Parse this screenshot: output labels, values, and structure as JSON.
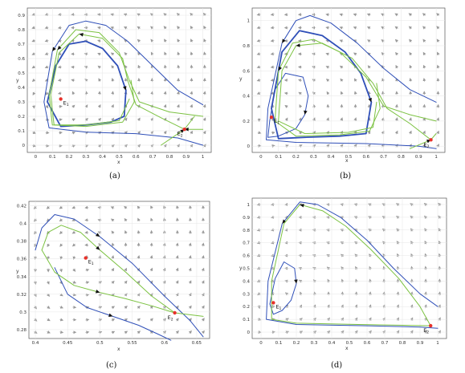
{
  "chart_data": [
    {
      "type": "scatter",
      "panel": "(a)",
      "xlabel": "x",
      "ylabel": "y",
      "xlim": [
        -0.05,
        1.05
      ],
      "ylim": [
        -0.05,
        0.95
      ],
      "xticks": [
        0,
        0.1,
        0.2,
        0.3,
        0.4,
        0.5,
        0.6,
        0.7,
        0.8,
        0.9,
        1
      ],
      "yticks": [
        0,
        0.1,
        0.2,
        0.3,
        0.4,
        0.5,
        0.6,
        0.7,
        0.8,
        0.9
      ],
      "colors": {
        "separatrix": "#2f4fb8",
        "trajectories": "#7cc242",
        "equilibrium": "#e8312a",
        "field": "#a8a8a8"
      },
      "equilibria": [
        {
          "label": "E1",
          "x": 0.15,
          "y": 0.32
        },
        {
          "label": "E2",
          "x": 0.89,
          "y": 0.11
        }
      ],
      "series": [
        {
          "role": "outer-separatrix",
          "x": [
            1.0,
            0.85,
            0.7,
            0.55,
            0.42,
            0.3,
            0.2,
            0.1,
            0.05,
            0.08,
            0.3,
            0.6,
            0.85,
            1.0
          ],
          "y": [
            0.28,
            0.38,
            0.55,
            0.72,
            0.83,
            0.86,
            0.83,
            0.65,
            0.3,
            0.12,
            0.09,
            0.08,
            0.05,
            0.0
          ]
        },
        {
          "role": "limit-cycle",
          "x": [
            0.07,
            0.12,
            0.2,
            0.3,
            0.4,
            0.49,
            0.54,
            0.53,
            0.45,
            0.3,
            0.15,
            0.07
          ],
          "y": [
            0.3,
            0.55,
            0.7,
            0.72,
            0.67,
            0.55,
            0.38,
            0.2,
            0.16,
            0.14,
            0.13,
            0.3
          ]
        },
        {
          "role": "green-trajectory",
          "x": [
            1.0,
            0.8,
            0.62,
            0.56,
            0.5,
            0.38,
            0.24,
            0.13,
            0.08,
            0.1,
            0.3,
            0.52,
            0.59,
            0.57
          ],
          "y": [
            0.2,
            0.23,
            0.3,
            0.45,
            0.64,
            0.78,
            0.8,
            0.66,
            0.35,
            0.14,
            0.13,
            0.16,
            0.3,
            0.45
          ]
        },
        {
          "role": "green-trajectory",
          "x": [
            0.89,
            0.75,
            0.6,
            0.55,
            0.52,
            0.4,
            0.26,
            0.14,
            0.09,
            0.11,
            0.3,
            0.5,
            0.56
          ],
          "y": [
            0.11,
            0.19,
            0.28,
            0.45,
            0.6,
            0.74,
            0.77,
            0.64,
            0.35,
            0.14,
            0.14,
            0.17,
            0.32
          ]
        },
        {
          "role": "green-trajectory",
          "x": [
            1.0,
            0.89
          ],
          "y": [
            0.11,
            0.11
          ]
        },
        {
          "role": "stable-manifold",
          "x": [
            0.75,
            0.89,
            0.95
          ],
          "y": [
            0.0,
            0.11,
            0.2
          ]
        }
      ]
    },
    {
      "type": "scatter",
      "panel": "(b)",
      "xlabel": "x",
      "ylabel": "y",
      "xlim": [
        -0.05,
        1.05
      ],
      "ylim": [
        -0.05,
        1.1
      ],
      "xticks": [
        0,
        0.1,
        0.2,
        0.3,
        0.4,
        0.5,
        0.6,
        0.7,
        0.8,
        0.9,
        1
      ],
      "yticks": [
        0,
        0.2,
        0.4,
        0.6,
        0.8,
        1
      ],
      "colors": {
        "separatrix": "#2f4fb8",
        "trajectories": "#7cc242",
        "equilibrium": "#e8312a",
        "field": "#a8a8a8"
      },
      "equilibria": [
        {
          "label": "E1",
          "x": 0.06,
          "y": 0.23
        },
        {
          "label": "E2",
          "x": 0.97,
          "y": 0.05
        }
      ],
      "series": [
        {
          "role": "outer-separatrix",
          "x": [
            1.0,
            0.85,
            0.7,
            0.55,
            0.4,
            0.28,
            0.2,
            0.12,
            0.04,
            0.03,
            0.2,
            0.6,
            0.9,
            1.0
          ],
          "y": [
            0.35,
            0.45,
            0.62,
            0.82,
            0.98,
            1.04,
            1.0,
            0.82,
            0.3,
            0.05,
            0.03,
            0.02,
            0.0,
            -0.02
          ]
        },
        {
          "role": "inner-separatrix",
          "x": [
            0.05,
            0.08,
            0.14,
            0.24,
            0.27,
            0.25,
            0.2,
            0.1,
            0.04,
            0.05
          ],
          "y": [
            0.2,
            0.45,
            0.58,
            0.55,
            0.4,
            0.25,
            0.14,
            0.08,
            0.07,
            0.2
          ]
        },
        {
          "role": "limit-cycle",
          "x": [
            0.06,
            0.12,
            0.22,
            0.35,
            0.48,
            0.57,
            0.63,
            0.6,
            0.45,
            0.25,
            0.1,
            0.06
          ],
          "y": [
            0.3,
            0.75,
            0.92,
            0.88,
            0.75,
            0.58,
            0.35,
            0.1,
            0.08,
            0.07,
            0.06,
            0.3
          ]
        },
        {
          "role": "green-trajectory",
          "x": [
            1.0,
            0.85,
            0.7,
            0.6,
            0.45,
            0.3,
            0.18,
            0.1,
            0.08,
            0.2,
            0.45,
            0.62,
            0.68,
            0.66
          ],
          "y": [
            0.2,
            0.25,
            0.32,
            0.55,
            0.75,
            0.85,
            0.82,
            0.6,
            0.2,
            0.08,
            0.09,
            0.12,
            0.3,
            0.5
          ]
        },
        {
          "role": "green-trajectory",
          "x": [
            0.97,
            0.85,
            0.72,
            0.64,
            0.52,
            0.35,
            0.2,
            0.12,
            0.1,
            0.25,
            0.5,
            0.64,
            0.66
          ],
          "y": [
            0.05,
            0.18,
            0.3,
            0.5,
            0.7,
            0.82,
            0.8,
            0.6,
            0.2,
            0.1,
            0.11,
            0.15,
            0.35
          ]
        },
        {
          "role": "stable-manifold",
          "x": [
            0.85,
            0.97,
            1.0
          ],
          "y": [
            -0.02,
            0.05,
            0.1
          ]
        }
      ]
    },
    {
      "type": "scatter",
      "panel": "(c)",
      "xlabel": "x",
      "ylabel": "y",
      "xlim": [
        0.39,
        0.67
      ],
      "ylim": [
        0.27,
        0.425
      ],
      "xticks": [
        0.4,
        0.45,
        0.5,
        0.55,
        0.6,
        0.65
      ],
      "yticks": [
        0.28,
        0.3,
        0.32,
        0.34,
        0.36,
        0.38,
        0.4,
        0.42
      ],
      "colors": {
        "separatrix": "#2f4fb8",
        "trajectories": "#7cc242",
        "equilibrium": "#e8312a",
        "field": "#a8a8a8"
      },
      "equilibria": [
        {
          "label": "E1",
          "x": 0.478,
          "y": 0.361
        },
        {
          "label": "E2",
          "x": 0.616,
          "y": 0.299
        }
      ],
      "series": [
        {
          "role": "outer-separatrix",
          "x": [
            0.4,
            0.41,
            0.43,
            0.46,
            0.5,
            0.55,
            0.6,
            0.64,
            0.66
          ],
          "y": [
            0.37,
            0.395,
            0.41,
            0.405,
            0.385,
            0.355,
            0.318,
            0.29,
            0.272
          ]
        },
        {
          "role": "inner-separatrix",
          "x": [
            0.43,
            0.45,
            0.48,
            0.52,
            0.56,
            0.59,
            0.61
          ],
          "y": [
            0.35,
            0.32,
            0.305,
            0.295,
            0.285,
            0.275,
            0.268
          ]
        },
        {
          "role": "green-trajectory",
          "x": [
            0.41,
            0.42,
            0.44,
            0.47,
            0.5,
            0.54,
            0.58,
            0.616,
            0.66
          ],
          "y": [
            0.37,
            0.39,
            0.398,
            0.39,
            0.37,
            0.345,
            0.318,
            0.299,
            0.295
          ]
        },
        {
          "role": "green-trajectory",
          "x": [
            0.41,
            0.43,
            0.46,
            0.5,
            0.54,
            0.58,
            0.616
          ],
          "y": [
            0.37,
            0.345,
            0.33,
            0.322,
            0.315,
            0.307,
            0.299
          ]
        }
      ]
    },
    {
      "type": "scatter",
      "panel": "(d)",
      "xlabel": "x",
      "ylabel": "y",
      "xlim": [
        -0.05,
        1.05
      ],
      "ylim": [
        -0.05,
        1.05
      ],
      "xticks": [
        0,
        0.1,
        0.2,
        0.3,
        0.4,
        0.5,
        0.6,
        0.7,
        0.8,
        0.9,
        1
      ],
      "yticks": [
        0,
        0.1,
        0.2,
        0.3,
        0.4,
        0.5,
        0.6,
        0.7,
        0.8,
        0.9,
        1
      ],
      "colors": {
        "separatrix": "#2f4fb8",
        "trajectories": "#7cc242",
        "equilibrium": "#e8312a",
        "field": "#a8a8a8"
      },
      "equilibria": [
        {
          "label": "E1",
          "x": 0.07,
          "y": 0.23
        },
        {
          "label": "E2",
          "x": 0.96,
          "y": 0.05
        }
      ],
      "series": [
        {
          "role": "outer-separatrix",
          "x": [
            1.0,
            0.9,
            0.75,
            0.6,
            0.45,
            0.32,
            0.22,
            0.12,
            0.04,
            0.03,
            0.2,
            0.6,
            0.9,
            1.0
          ],
          "y": [
            0.2,
            0.3,
            0.5,
            0.72,
            0.9,
            1.0,
            1.02,
            0.85,
            0.4,
            0.1,
            0.06,
            0.05,
            0.04,
            0.03
          ]
        },
        {
          "role": "inner-separatrix",
          "x": [
            0.05,
            0.08,
            0.13,
            0.19,
            0.2,
            0.17,
            0.12,
            0.07,
            0.05
          ],
          "y": [
            0.22,
            0.42,
            0.55,
            0.5,
            0.38,
            0.25,
            0.17,
            0.14,
            0.22
          ]
        },
        {
          "role": "green-trajectory",
          "x": [
            0.96,
            0.9,
            0.78,
            0.62,
            0.48,
            0.35,
            0.22,
            0.13,
            0.06,
            0.06,
            0.2,
            0.55,
            0.96
          ],
          "y": [
            0.05,
            0.2,
            0.42,
            0.65,
            0.83,
            0.95,
            1.0,
            0.85,
            0.4,
            0.1,
            0.07,
            0.06,
            0.05
          ]
        }
      ]
    }
  ],
  "panels": [
    {
      "caption": "(a)",
      "e1": "E",
      "e1_sub": "1",
      "e2": "E",
      "e2_sub": "2",
      "xlabel": "x",
      "ylabel": "y"
    },
    {
      "caption": "(b)",
      "e1": "E",
      "e1_sub": "1",
      "e2": "E",
      "e2_sub": "2",
      "xlabel": "x",
      "ylabel": "y"
    },
    {
      "caption": "(c)",
      "e1": "E",
      "e1_sub": "1",
      "e2": "E",
      "e2_sub": "2",
      "xlabel": "x",
      "ylabel": "y"
    },
    {
      "caption": "(d)",
      "e1": "E",
      "e1_sub": "1",
      "e2": "E",
      "e2_sub": "2",
      "xlabel": "x",
      "ylabel": "y"
    }
  ]
}
